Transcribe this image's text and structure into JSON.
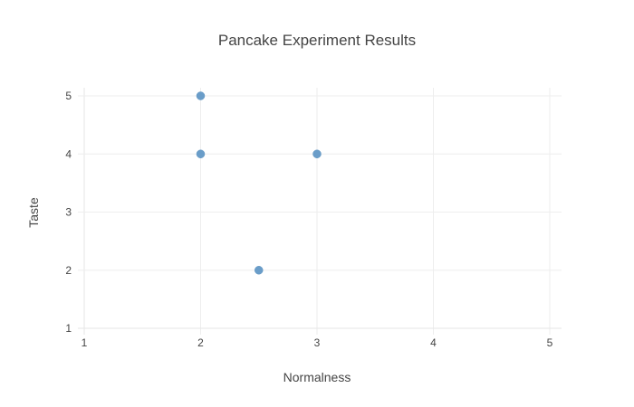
{
  "chart_data": {
    "type": "scatter",
    "title": "Pancake Experiment Results",
    "xlabel": "Normalness",
    "ylabel": "Taste",
    "xlim": [
      1,
      5
    ],
    "ylim": [
      1,
      5
    ],
    "grid": true,
    "x_ticks": [
      "1",
      "2",
      "3",
      "4",
      "5"
    ],
    "y_ticks": [
      "1",
      "2",
      "3",
      "4",
      "5"
    ],
    "series": [
      {
        "x": [
          2,
          2,
          3,
          2.5
        ],
        "y": [
          5,
          4,
          4,
          2
        ],
        "color": "#6a9dc9"
      }
    ]
  }
}
